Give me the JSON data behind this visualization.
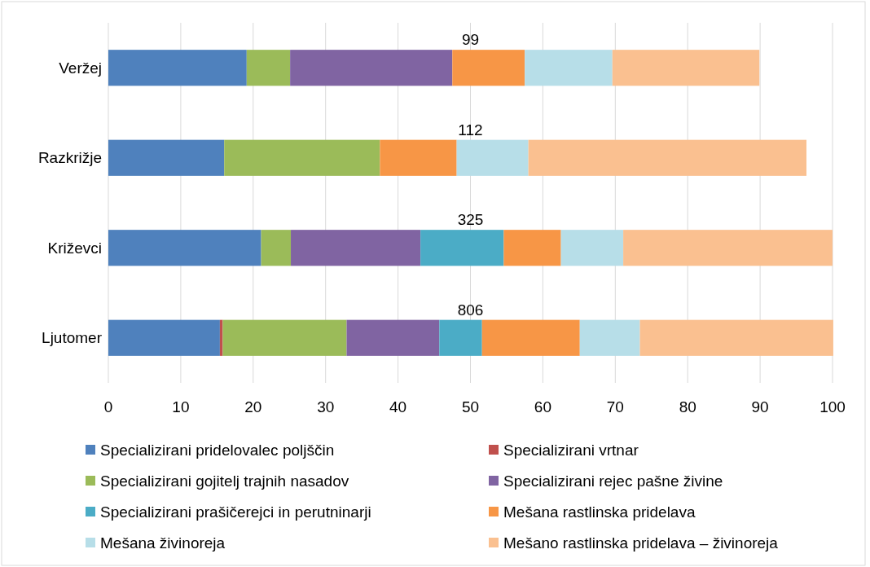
{
  "chart_data": {
    "type": "bar",
    "orientation": "horizontal",
    "stacked": true,
    "categories": [
      "Veržej",
      "Razkrižje",
      "Križevci",
      "Ljutomer"
    ],
    "series": [
      {
        "name": "Specializirani pridelovalec poljščin",
        "color": "#4f81bd",
        "values": [
          19.1,
          16.0,
          21.1,
          15.4
        ]
      },
      {
        "name": "Specializirani vrtnar",
        "color": "#c0504d",
        "values": [
          0,
          0,
          0,
          0.4
        ]
      },
      {
        "name": "Specializirani gojitelj trajnih nasadov",
        "color": "#9bbb59",
        "values": [
          6.0,
          21.5,
          4.1,
          17.1
        ]
      },
      {
        "name": "Specializirani rejec pašne živine",
        "color": "#8064a2",
        "values": [
          22.4,
          0,
          17.9,
          12.8
        ]
      },
      {
        "name": "Specializirani prašičerejci in perutninarji",
        "color": "#4bacc6",
        "values": [
          0,
          0,
          11.5,
          5.9
        ]
      },
      {
        "name": "Mešana rastlinska pridelava",
        "color": "#f79646",
        "values": [
          10.0,
          10.6,
          7.9,
          13.5
        ]
      },
      {
        "name": "Mešana živinoreja",
        "color": "#b7dee8",
        "values": [
          12.1,
          9.9,
          8.6,
          8.3
        ]
      },
      {
        "name": "Mešano rastlinska pridelava – živinoreja",
        "color": "#fac090",
        "values": [
          20.3,
          38.4,
          28.9,
          26.7
        ]
      }
    ],
    "xlim": [
      0,
      100
    ],
    "xticks": [
      0,
      10,
      20,
      30,
      40,
      50,
      60,
      70,
      80,
      90,
      100
    ],
    "grid": "x",
    "legend": "bottom",
    "annotations": [
      "99",
      "112",
      "325",
      "806"
    ]
  }
}
